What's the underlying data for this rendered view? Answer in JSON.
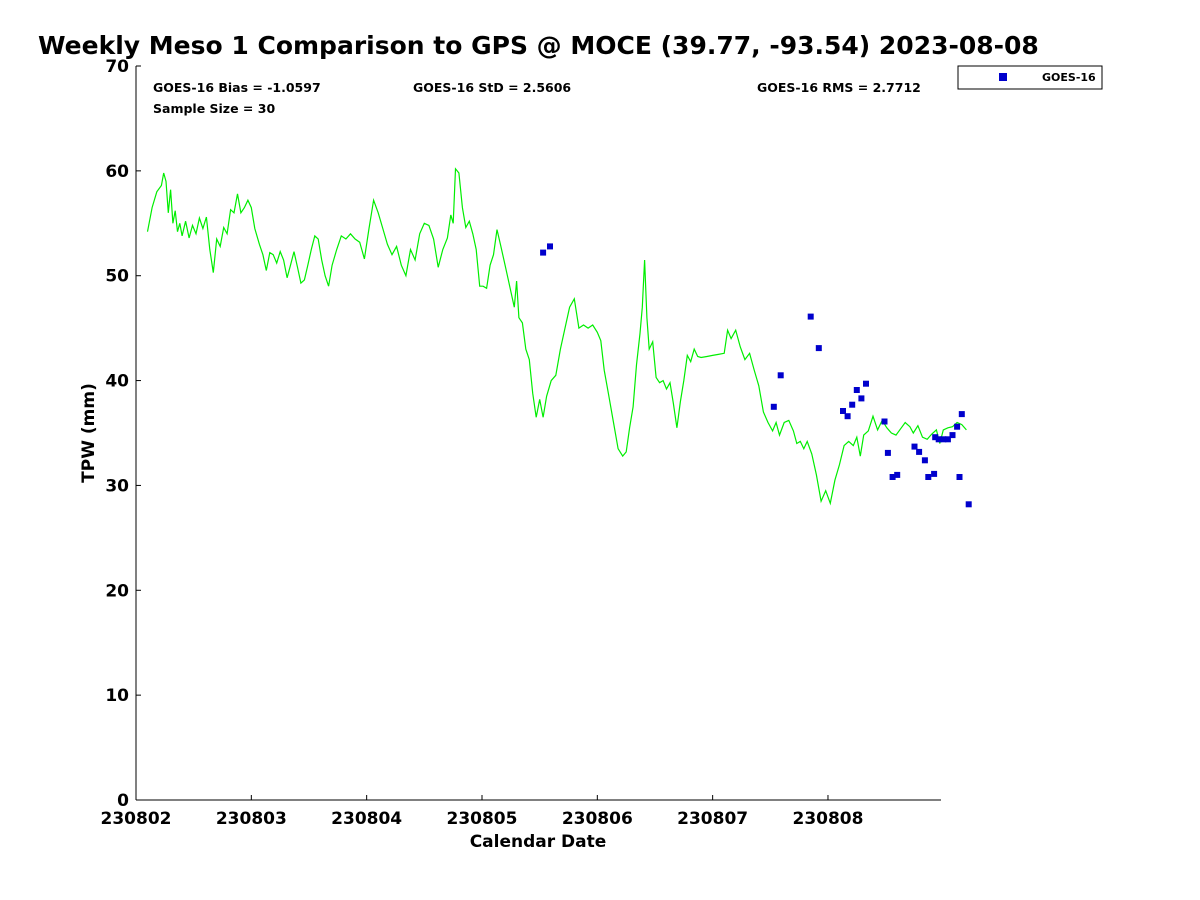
{
  "chart_data": {
    "type": "scatter",
    "title": "Weekly Meso 1 Comparison to GPS @ MOCE (39.77, -93.54) 2023-08-08",
    "xlabel": "Calendar Date",
    "ylabel": "TPW (mm)",
    "xlim": [
      0,
      6.98
    ],
    "ylim": [
      0,
      70
    ],
    "x_tick_positions": [
      0,
      1,
      2,
      3,
      4,
      5,
      6
    ],
    "x_tick_labels": [
      "230802",
      "230803",
      "230804",
      "230805",
      "230806",
      "230807",
      "230808"
    ],
    "y_ticks": [
      0,
      10,
      20,
      30,
      40,
      50,
      60,
      70
    ],
    "grid": false,
    "legend_position": "outside-top-right",
    "colors": {
      "gps_line": "#00ee00",
      "goes_marker": "#0000cc",
      "axis": "#000000"
    },
    "stats": {
      "bias": "GOES-16 Bias = -1.0597",
      "std": "GOES-16 StD = 2.5606",
      "rms": "GOES-16 RMS = 2.7712",
      "sample_size": "Sample Size = 30"
    },
    "series": [
      {
        "type": "scatter",
        "name": "GOES-16",
        "marker": "square",
        "color": "#0000cc",
        "points": [
          [
            3.53,
            52.2
          ],
          [
            3.59,
            52.8
          ],
          [
            5.53,
            37.5
          ],
          [
            5.59,
            40.5
          ],
          [
            5.85,
            46.1
          ],
          [
            5.92,
            43.1
          ],
          [
            6.13,
            37.1
          ],
          [
            6.17,
            36.6
          ],
          [
            6.21,
            37.7
          ],
          [
            6.25,
            39.1
          ],
          [
            6.29,
            38.3
          ],
          [
            6.33,
            39.7
          ],
          [
            6.49,
            36.1
          ],
          [
            6.52,
            33.1
          ],
          [
            6.56,
            30.8
          ],
          [
            6.6,
            31.0
          ],
          [
            6.75,
            33.7
          ],
          [
            6.79,
            33.2
          ],
          [
            6.84,
            32.4
          ],
          [
            6.87,
            30.8
          ],
          [
            6.92,
            31.1
          ],
          [
            7.14,
            30.8
          ],
          [
            7.22,
            28.2
          ],
          [
            6.93,
            34.6
          ],
          [
            6.96,
            34.4
          ],
          [
            7.0,
            34.4
          ],
          [
            7.04,
            34.4
          ],
          [
            7.08,
            34.8
          ],
          [
            7.12,
            35.6
          ],
          [
            7.16,
            36.8
          ]
        ]
      },
      {
        "type": "line",
        "color": "#00ee00",
        "points": [
          [
            0.1,
            54.2
          ],
          [
            0.14,
            56.5
          ],
          [
            0.18,
            58.0
          ],
          [
            0.22,
            58.6
          ],
          [
            0.24,
            59.8
          ],
          [
            0.26,
            59.0
          ],
          [
            0.28,
            56.0
          ],
          [
            0.3,
            58.2
          ],
          [
            0.32,
            55.0
          ],
          [
            0.34,
            56.2
          ],
          [
            0.36,
            54.2
          ],
          [
            0.38,
            55.0
          ],
          [
            0.4,
            53.8
          ],
          [
            0.43,
            55.2
          ],
          [
            0.46,
            53.6
          ],
          [
            0.49,
            54.8
          ],
          [
            0.52,
            54.0
          ],
          [
            0.55,
            55.5
          ],
          [
            0.58,
            54.5
          ],
          [
            0.61,
            55.6
          ],
          [
            0.64,
            52.5
          ],
          [
            0.67,
            50.3
          ],
          [
            0.7,
            53.5
          ],
          [
            0.73,
            52.8
          ],
          [
            0.76,
            54.6
          ],
          [
            0.79,
            54.0
          ],
          [
            0.82,
            56.3
          ],
          [
            0.85,
            56.0
          ],
          [
            0.88,
            57.8
          ],
          [
            0.91,
            56.0
          ],
          [
            0.94,
            56.5
          ],
          [
            0.97,
            57.2
          ],
          [
            1.0,
            56.5
          ],
          [
            1.03,
            54.5
          ],
          [
            1.07,
            53.0
          ],
          [
            1.1,
            52.0
          ],
          [
            1.13,
            50.5
          ],
          [
            1.16,
            52.2
          ],
          [
            1.19,
            52.0
          ],
          [
            1.22,
            51.2
          ],
          [
            1.25,
            52.3
          ],
          [
            1.28,
            51.5
          ],
          [
            1.31,
            49.8
          ],
          [
            1.34,
            51.0
          ],
          [
            1.37,
            52.3
          ],
          [
            1.4,
            50.8
          ],
          [
            1.43,
            49.3
          ],
          [
            1.46,
            49.6
          ],
          [
            1.49,
            51.0
          ],
          [
            1.52,
            52.5
          ],
          [
            1.55,
            53.8
          ],
          [
            1.58,
            53.5
          ],
          [
            1.61,
            51.5
          ],
          [
            1.64,
            50.0
          ],
          [
            1.67,
            49.0
          ],
          [
            1.7,
            51.0
          ],
          [
            1.74,
            52.5
          ],
          [
            1.78,
            53.8
          ],
          [
            1.82,
            53.5
          ],
          [
            1.86,
            54.0
          ],
          [
            1.9,
            53.5
          ],
          [
            1.94,
            53.2
          ],
          [
            1.98,
            51.6
          ],
          [
            2.02,
            54.5
          ],
          [
            2.06,
            57.2
          ],
          [
            2.1,
            56.0
          ],
          [
            2.14,
            54.5
          ],
          [
            2.18,
            53.0
          ],
          [
            2.22,
            52.0
          ],
          [
            2.26,
            52.8
          ],
          [
            2.3,
            51.0
          ],
          [
            2.34,
            50.0
          ],
          [
            2.38,
            52.5
          ],
          [
            2.42,
            51.5
          ],
          [
            2.46,
            54.0
          ],
          [
            2.5,
            55.0
          ],
          [
            2.54,
            54.8
          ],
          [
            2.58,
            53.5
          ],
          [
            2.62,
            50.8
          ],
          [
            2.66,
            52.5
          ],
          [
            2.7,
            53.6
          ],
          [
            2.73,
            55.8
          ],
          [
            2.75,
            55.0
          ],
          [
            2.77,
            60.2
          ],
          [
            2.8,
            59.8
          ],
          [
            2.83,
            56.5
          ],
          [
            2.86,
            54.6
          ],
          [
            2.89,
            55.2
          ],
          [
            2.92,
            54.0
          ],
          [
            2.95,
            52.5
          ],
          [
            2.98,
            49.0
          ],
          [
            3.01,
            49.0
          ],
          [
            3.04,
            48.8
          ],
          [
            3.07,
            51.0
          ],
          [
            3.1,
            52.0
          ],
          [
            3.13,
            54.4
          ],
          [
            3.16,
            53.0
          ],
          [
            3.2,
            51.0
          ],
          [
            3.24,
            49.0
          ],
          [
            3.28,
            47.0
          ],
          [
            3.3,
            49.5
          ],
          [
            3.32,
            46.0
          ],
          [
            3.35,
            45.5
          ],
          [
            3.38,
            43.0
          ],
          [
            3.41,
            42.0
          ],
          [
            3.44,
            38.8
          ],
          [
            3.47,
            36.5
          ],
          [
            3.5,
            38.2
          ],
          [
            3.53,
            36.5
          ],
          [
            3.56,
            38.5
          ],
          [
            3.6,
            40.0
          ],
          [
            3.64,
            40.5
          ],
          [
            3.68,
            43.0
          ],
          [
            3.72,
            45.0
          ],
          [
            3.76,
            47.0
          ],
          [
            3.8,
            47.8
          ],
          [
            3.84,
            45.0
          ],
          [
            3.88,
            45.3
          ],
          [
            3.92,
            45.0
          ],
          [
            3.96,
            45.3
          ],
          [
            4.0,
            44.6
          ],
          [
            4.03,
            43.8
          ],
          [
            4.06,
            41.0
          ],
          [
            4.1,
            38.5
          ],
          [
            4.14,
            36.0
          ],
          [
            4.18,
            33.5
          ],
          [
            4.22,
            32.8
          ],
          [
            4.25,
            33.2
          ],
          [
            4.28,
            35.5
          ],
          [
            4.31,
            37.5
          ],
          [
            4.34,
            41.5
          ],
          [
            4.37,
            44.5
          ],
          [
            4.39,
            47.0
          ],
          [
            4.41,
            51.5
          ],
          [
            4.43,
            46.0
          ],
          [
            4.45,
            43.0
          ],
          [
            4.48,
            43.7
          ],
          [
            4.51,
            40.3
          ],
          [
            4.54,
            39.8
          ],
          [
            4.57,
            40.0
          ],
          [
            4.6,
            39.2
          ],
          [
            4.63,
            39.8
          ],
          [
            4.66,
            37.8
          ],
          [
            4.69,
            35.5
          ],
          [
            4.72,
            38.0
          ],
          [
            4.75,
            40.0
          ],
          [
            4.78,
            42.4
          ],
          [
            4.81,
            41.8
          ],
          [
            4.84,
            43.0
          ],
          [
            4.87,
            42.3
          ],
          [
            4.9,
            42.2
          ],
          [
            4.95,
            42.3
          ],
          [
            5.0,
            42.4
          ],
          [
            5.05,
            42.5
          ],
          [
            5.1,
            42.6
          ],
          [
            5.13,
            44.8
          ],
          [
            5.16,
            44.0
          ],
          [
            5.2,
            44.8
          ],
          [
            5.24,
            43.2
          ],
          [
            5.28,
            42.0
          ],
          [
            5.32,
            42.6
          ],
          [
            5.36,
            41.0
          ],
          [
            5.4,
            39.5
          ],
          [
            5.44,
            37.0
          ],
          [
            5.48,
            36.0
          ],
          [
            5.52,
            35.2
          ],
          [
            5.55,
            36.0
          ],
          [
            5.58,
            34.8
          ],
          [
            5.62,
            36.0
          ],
          [
            5.66,
            36.2
          ],
          [
            5.7,
            35.2
          ],
          [
            5.73,
            34.0
          ],
          [
            5.76,
            34.2
          ],
          [
            5.79,
            33.5
          ],
          [
            5.82,
            34.2
          ],
          [
            5.86,
            33.0
          ],
          [
            5.9,
            31.0
          ],
          [
            5.94,
            28.5
          ],
          [
            5.98,
            29.5
          ],
          [
            6.02,
            28.3
          ],
          [
            6.06,
            30.5
          ],
          [
            6.1,
            32.0
          ],
          [
            6.14,
            33.8
          ],
          [
            6.18,
            34.2
          ],
          [
            6.22,
            33.8
          ],
          [
            6.25,
            34.6
          ],
          [
            6.28,
            32.8
          ],
          [
            6.31,
            34.8
          ],
          [
            6.35,
            35.2
          ],
          [
            6.39,
            36.6
          ],
          [
            6.43,
            35.3
          ],
          [
            6.47,
            36.2
          ],
          [
            6.51,
            35.5
          ],
          [
            6.55,
            35.0
          ],
          [
            6.59,
            34.8
          ],
          [
            6.63,
            35.4
          ],
          [
            6.67,
            36.0
          ],
          [
            6.71,
            35.6
          ],
          [
            6.74,
            35.0
          ],
          [
            6.78,
            35.7
          ],
          [
            6.82,
            34.6
          ],
          [
            6.86,
            34.4
          ],
          [
            6.9,
            34.9
          ],
          [
            6.94,
            35.3
          ],
          [
            6.97,
            34.0
          ],
          [
            7.0,
            35.3
          ],
          [
            7.04,
            35.5
          ],
          [
            7.08,
            35.6
          ],
          [
            7.12,
            36.0
          ],
          [
            7.16,
            35.8
          ],
          [
            7.2,
            35.3
          ]
        ]
      }
    ]
  }
}
